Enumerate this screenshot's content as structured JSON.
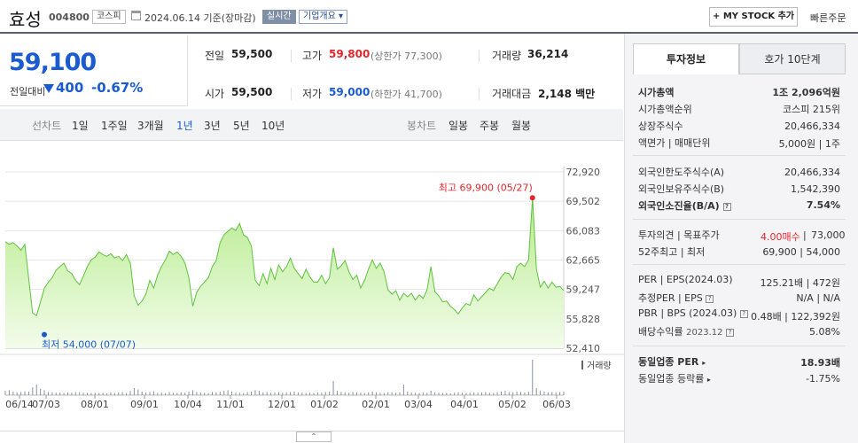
{
  "header": {
    "name": "효성",
    "code": "004800",
    "market": "코스피",
    "date": "2024.06.14 기준(장마감)",
    "realtime": "실시간",
    "company_info": "기업개요",
    "mystock": "+ MY STOCK 추가",
    "quick_order": "빠른주문"
  },
  "price": {
    "current": "59,100",
    "change_label": "전일대비",
    "change": "400",
    "change_pct": "-0.67%"
  },
  "quote": {
    "prev_label": "전일",
    "prev": "59,500",
    "high_label": "고가",
    "high": "59,800",
    "upper_limit": "(상한가 77,300)",
    "volume_label": "거래량",
    "volume": "36,214",
    "open_label": "시가",
    "open": "59,500",
    "low_label": "저가",
    "low": "59,000",
    "lower_limit": "(하한가 41,700)",
    "amount_label": "거래대금",
    "amount": "2,148 백만"
  },
  "tabs": {
    "line_label": "선차트",
    "line_items": [
      "1일",
      "1주일",
      "3개월",
      "1년",
      "3년",
      "5년",
      "10년"
    ],
    "selected": "1년",
    "candle_label": "봉차트",
    "candle_items": [
      "일봉",
      "주봉",
      "월봉"
    ]
  },
  "chart_data": {
    "type": "area",
    "yticks": [
      "72,920",
      "69,502",
      "66,083",
      "62,665",
      "59,247",
      "55,828",
      "52,410"
    ],
    "ylim": [
      52410,
      72920
    ],
    "xticks": [
      "06/14",
      "07/03",
      "08/01",
      "09/01",
      "10/04",
      "11/01",
      "12/01",
      "01/02",
      "02/01",
      "03/04",
      "04/01",
      "05/02",
      "06/03"
    ],
    "max_label": "최고 69,900 (05/27)",
    "min_label": "최저 54,000 (07/07)",
    "max_value": 69900,
    "min_value": 54000,
    "volume_label": "거래량",
    "values": [
      64800,
      64500,
      64700,
      64300,
      63800,
      64500,
      60500,
      56500,
      56200,
      57800,
      59400,
      60100,
      60600,
      61500,
      61900,
      62300,
      61400,
      61100,
      60300,
      59800,
      60800,
      61900,
      62700,
      63000,
      63600,
      63300,
      63100,
      63400,
      62900,
      63100,
      62600,
      63300,
      62300,
      58500,
      57400,
      57900,
      58700,
      60300,
      59400,
      60900,
      61900,
      62700,
      63700,
      63300,
      63600,
      63100,
      62300,
      60600,
      57300,
      58900,
      59600,
      60100,
      60600,
      61900,
      62600,
      64700,
      65600,
      66000,
      66400,
      66100,
      66900,
      65600,
      65300,
      64300,
      60300,
      59700,
      61100,
      59900,
      61700,
      60400,
      62100,
      61300,
      61900,
      62900,
      61700,
      61100,
      60500,
      61600,
      60700,
      60100,
      60100,
      60900,
      59900,
      60600,
      64100,
      61600,
      62000,
      62600,
      61300,
      60400,
      60900,
      59400,
      60300,
      61600,
      62700,
      61700,
      62300,
      61300,
      59200,
      58700,
      59100,
      58000,
      58800,
      58400,
      58800,
      58000,
      58600,
      58200,
      59200,
      61900,
      59000,
      58500,
      57800,
      57900,
      57300,
      56900,
      56400,
      57100,
      57600,
      57400,
      58600,
      57900,
      58400,
      58900,
      59400,
      59100,
      59900,
      60700,
      61200,
      61100,
      60400,
      61900,
      62300,
      61900,
      62700,
      69900,
      61600,
      59500,
      60200,
      59400,
      60100,
      59500,
      59600,
      59100
    ],
    "volume": [
      12,
      14,
      10,
      8,
      9,
      11,
      10,
      22,
      30,
      18,
      14,
      9,
      8,
      7,
      7,
      6,
      8,
      7,
      9,
      8,
      7,
      6,
      6,
      7,
      6,
      6,
      5,
      7,
      6,
      8,
      9,
      6,
      12,
      20,
      16,
      10,
      8,
      9,
      11,
      7,
      8,
      6,
      9,
      7,
      6,
      8,
      7,
      10,
      14,
      9,
      8,
      7,
      6,
      9,
      8,
      10,
      12,
      14,
      10,
      8,
      7,
      6,
      9,
      10,
      14,
      12,
      8,
      9,
      7,
      8,
      9,
      7,
      8,
      9,
      10,
      8,
      7,
      6,
      7,
      6,
      8,
      7,
      9,
      10,
      40,
      12,
      9,
      8,
      7,
      9,
      8,
      7,
      6,
      8,
      10,
      8,
      7,
      6,
      9,
      8,
      7,
      8,
      30,
      10,
      8,
      7,
      6,
      8,
      7,
      12,
      8,
      7,
      6,
      6,
      5,
      7,
      8,
      7,
      6,
      7,
      8,
      7,
      8,
      9,
      7,
      6,
      8,
      10,
      12,
      9,
      8,
      10,
      9,
      8,
      10,
      100,
      20,
      12,
      10,
      8,
      9,
      8,
      9,
      10
    ]
  },
  "info": {
    "tab1": "투자정보",
    "tab2": "호가 10단계",
    "market_cap_label": "시가총액",
    "market_cap": "1조 2,096억원",
    "rank_label": "시가총액순위",
    "rank": "코스피 215위",
    "shares_label": "상장주식수",
    "shares": "20,466,334",
    "par_label": "액면가 | 매매단위",
    "par": "5,000원 | 1주",
    "foreign_limit_label": "외국인한도주식수(A)",
    "foreign_limit": "20,466,334",
    "foreign_hold_label": "외국인보유주식수(B)",
    "foreign_hold": "1,542,390",
    "foreign_ratio_label": "외국인소진율(B/A)",
    "foreign_ratio": "7.54%",
    "opinion_label": "투자의견 | 목표주가",
    "opinion": "4.00매수",
    "target": "73,000",
    "w52_label": "52주최고 | 최저",
    "w52": "69,900 | 54,000",
    "per_label": "PER | EPS(2024.03)",
    "per": "125.21배 | 472원",
    "est_per_label": "추정PER | EPS",
    "est_per": "N/A | N/A",
    "pbr_label": "PBR | BPS (2024.03)",
    "pbr": "0.48배 | 122,392원",
    "div_label": "배당수익률",
    "div_date": "2023.12",
    "div": "5.08%",
    "ind_per_label": "동일업종 PER",
    "ind_per": "18.93배",
    "ind_rate_label": "동일업종 등락률",
    "ind_rate": "-1.75%"
  }
}
